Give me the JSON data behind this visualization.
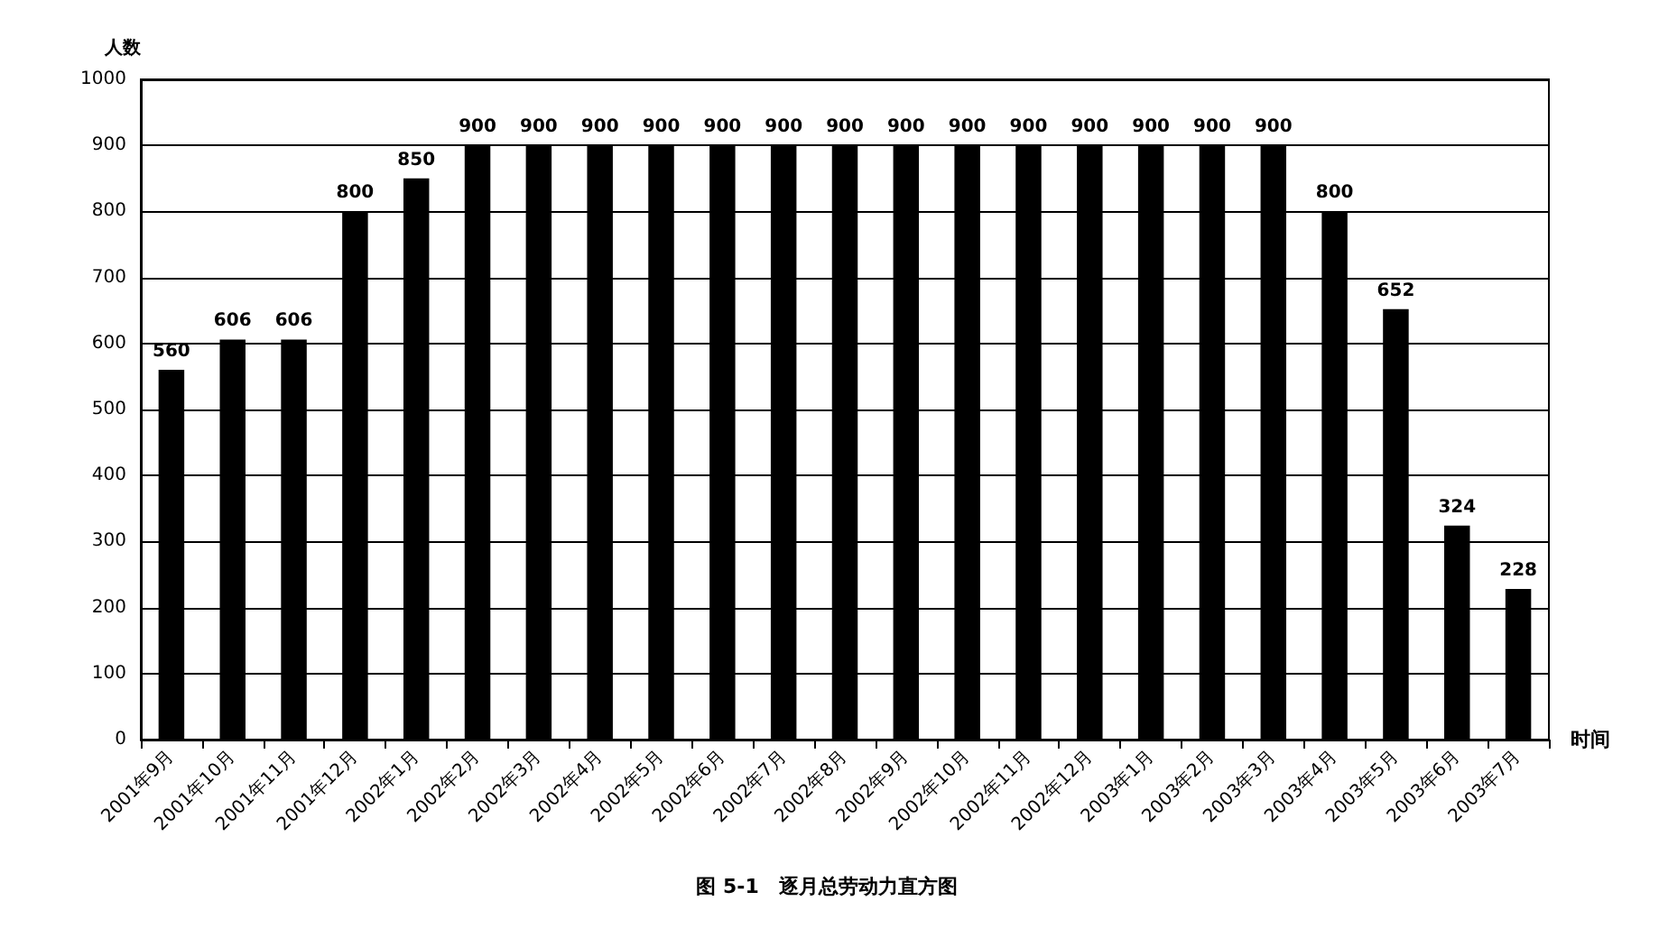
{
  "chart_data": {
    "type": "bar",
    "title": "图 5-1　逐月总劳动力直方图",
    "xlabel": "时间",
    "ylabel": "人数",
    "categories": [
      "2001年9月",
      "2001年10月",
      "2001年11月",
      "2001年12月",
      "2002年1月",
      "2002年2月",
      "2002年3月",
      "2002年4月",
      "2002年5月",
      "2002年6月",
      "2002年7月",
      "2002年8月",
      "2002年9月",
      "2002年10月",
      "2002年11月",
      "2002年12月",
      "2003年1月",
      "2003年2月",
      "2003年3月",
      "2003年4月",
      "2003年5月",
      "2003年6月",
      "2003年7月"
    ],
    "values": [
      560,
      606,
      606,
      800,
      850,
      900,
      900,
      900,
      900,
      900,
      900,
      900,
      900,
      900,
      900,
      900,
      900,
      900,
      900,
      800,
      652,
      324,
      228
    ],
    "color": "#000000",
    "ylim": [
      0,
      1000
    ],
    "yticks": [
      0,
      100,
      200,
      300,
      400,
      500,
      600,
      700,
      800,
      900,
      1000
    ],
    "grid": "y",
    "data_labels": true
  }
}
